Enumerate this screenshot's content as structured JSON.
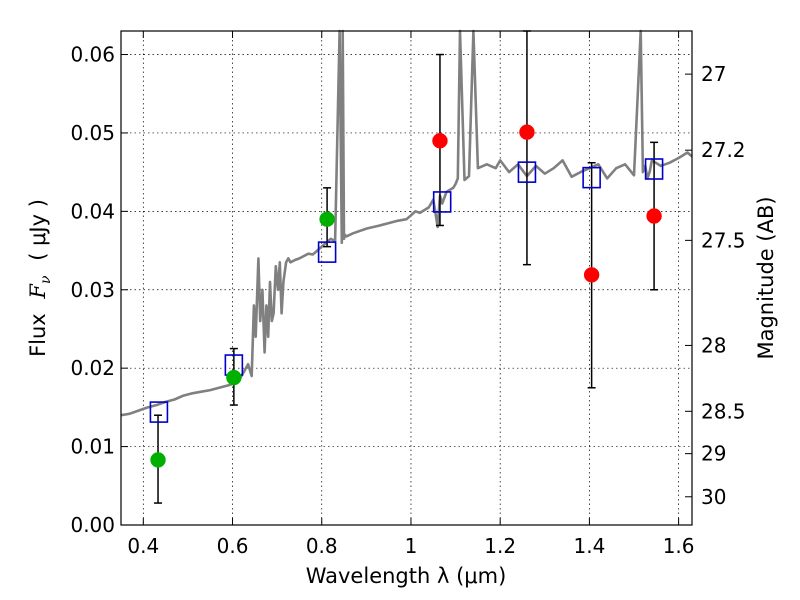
{
  "chart_data": {
    "type": "scatter",
    "xlabel": "Wavelength  λ (μm)",
    "ylabel_prefix": "Flux",
    "ylabel_symbol": "F",
    "ylabel_subscript": "ν",
    "ylabel_units": "( μJy )",
    "ylabel_right": "Magnitude (AB)",
    "xlim": [
      0.35,
      1.63
    ],
    "ylim": [
      0.0,
      0.063
    ],
    "grid": true,
    "x_ticks": [
      0.4,
      0.6,
      0.8,
      1.0,
      1.2,
      1.4,
      1.6
    ],
    "x_tick_labels": [
      "0.4",
      "0.6",
      "0.8",
      "1",
      "1.2",
      "1.4",
      "1.6"
    ],
    "y_ticks": [
      0.0,
      0.01,
      0.02,
      0.03,
      0.04,
      0.05,
      0.06
    ],
    "y_tick_labels": [
      "0.00",
      "0.01",
      "0.02",
      "0.03",
      "0.04",
      "0.05",
      "0.06"
    ],
    "mag_ticks": [
      {
        "label": "27",
        "flux": 0.0575
      },
      {
        "label": "27.2",
        "flux": 0.0478
      },
      {
        "label": "27.5",
        "flux": 0.0363
      },
      {
        "label": "28",
        "flux": 0.0229
      },
      {
        "label": "28.5",
        "flux": 0.0145
      },
      {
        "label": "29",
        "flux": 0.0091
      },
      {
        "label": "30",
        "flux": 0.0036
      }
    ],
    "colors": {
      "spectrum": "#808080",
      "detection": "#00b000",
      "red_point": "#ff0000",
      "model": "#0000cc",
      "errorbar": "#000000"
    },
    "series": [
      {
        "name": "spectrum",
        "kind": "line",
        "x": [
          0.35,
          0.37,
          0.39,
          0.41,
          0.43,
          0.45,
          0.47,
          0.49,
          0.51,
          0.53,
          0.55,
          0.57,
          0.59,
          0.6,
          0.615,
          0.625,
          0.635,
          0.643,
          0.648,
          0.652,
          0.658,
          0.662,
          0.667,
          0.672,
          0.676,
          0.68,
          0.684,
          0.688,
          0.692,
          0.697,
          0.702,
          0.706,
          0.71,
          0.714,
          0.72,
          0.725,
          0.73,
          0.74,
          0.75,
          0.76,
          0.77,
          0.78,
          0.79,
          0.8,
          0.81,
          0.82,
          0.83,
          0.84,
          0.845,
          0.847,
          0.85,
          0.852,
          0.855,
          0.87,
          0.9,
          0.93,
          0.95,
          0.97,
          0.99,
          1.0,
          1.01,
          1.02,
          1.04,
          1.05,
          1.06,
          1.065,
          1.07,
          1.08,
          1.095,
          1.1,
          1.105,
          1.11,
          1.12,
          1.13,
          1.14,
          1.15,
          1.17,
          1.19,
          1.2,
          1.22,
          1.24,
          1.26,
          1.28,
          1.3,
          1.32,
          1.34,
          1.36,
          1.38,
          1.4,
          1.42,
          1.44,
          1.46,
          1.48,
          1.5,
          1.515,
          1.52,
          1.525,
          1.53,
          1.535,
          1.54,
          1.56,
          1.58,
          1.6,
          1.62,
          1.63
        ],
        "y": [
          0.014,
          0.0142,
          0.0146,
          0.015,
          0.0153,
          0.0157,
          0.016,
          0.0165,
          0.0168,
          0.017,
          0.0172,
          0.0175,
          0.0178,
          0.018,
          0.0185,
          0.0195,
          0.0205,
          0.019,
          0.028,
          0.024,
          0.034,
          0.026,
          0.03,
          0.022,
          0.028,
          0.024,
          0.031,
          0.026,
          0.027,
          0.033,
          0.03,
          0.0335,
          0.027,
          0.031,
          0.0335,
          0.034,
          0.0335,
          0.0338,
          0.034,
          0.0343,
          0.0346,
          0.0345,
          0.035,
          0.0355,
          0.036,
          0.0365,
          0.0362,
          0.063,
          0.036,
          0.063,
          0.0365,
          0.037,
          0.0368,
          0.0372,
          0.0378,
          0.0382,
          0.0385,
          0.0388,
          0.039,
          0.0395,
          0.04,
          0.0398,
          0.0405,
          0.0415,
          0.038,
          0.042,
          0.041,
          0.0425,
          0.043,
          0.0435,
          0.0442,
          0.063,
          0.044,
          0.0445,
          0.063,
          0.0455,
          0.046,
          0.0455,
          0.0465,
          0.045,
          0.046,
          0.0445,
          0.0458,
          0.0448,
          0.0455,
          0.0465,
          0.0444,
          0.045,
          0.0455,
          0.046,
          0.0442,
          0.0455,
          0.046,
          0.0446,
          0.063,
          0.045,
          0.0458,
          0.0442,
          0.045,
          0.0465,
          0.0458,
          0.0462,
          0.0468,
          0.0475,
          0.047
        ]
      },
      {
        "name": "green_detections",
        "kind": "points",
        "x": [
          0.433,
          0.603,
          0.812
        ],
        "y": [
          0.0083,
          0.0188,
          0.039
        ],
        "err_low": [
          0.0028,
          0.0153,
          0.0355
        ],
        "err_high": [
          0.014,
          0.0225,
          0.043
        ]
      },
      {
        "name": "red_points",
        "kind": "points",
        "x": [
          1.065,
          1.26,
          1.405,
          1.545
        ],
        "y": [
          0.049,
          0.0501,
          0.0319,
          0.0394
        ],
        "err_low": [
          0.0382,
          0.0332,
          0.0175,
          0.03
        ],
        "err_high": [
          0.06,
          0.063,
          0.0462,
          0.0488
        ]
      },
      {
        "name": "model_photometry",
        "kind": "squares",
        "x": [
          0.435,
          0.603,
          0.812,
          1.07,
          1.26,
          1.405,
          1.545
        ],
        "y": [
          0.0144,
          0.0204,
          0.0348,
          0.0412,
          0.045,
          0.0443,
          0.0454
        ]
      }
    ]
  }
}
